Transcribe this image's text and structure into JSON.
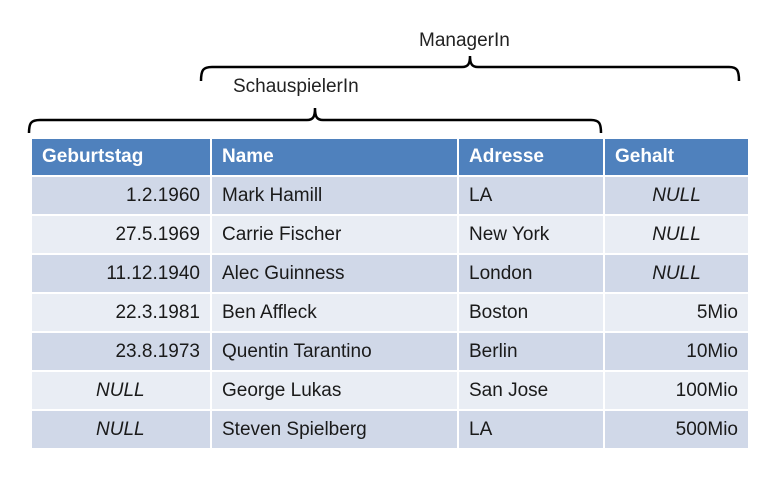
{
  "labels": {
    "manager": "ManagerIn",
    "actor": "SchauspielerIn"
  },
  "table": {
    "headers": [
      "Geburtstag",
      "Name",
      "Adresse",
      "Gehalt"
    ],
    "rows": [
      [
        "1.2.1960",
        "Mark Hamill",
        "LA",
        "NULL"
      ],
      [
        "27.5.1969",
        "Carrie Fischer",
        "New York",
        "NULL"
      ],
      [
        "11.12.1940",
        "Alec Guinness",
        "London",
        "NULL"
      ],
      [
        "22.3.1981",
        "Ben Affleck",
        "Boston",
        "5Mio"
      ],
      [
        "23.8.1973",
        "Quentin Tarantino",
        "Berlin",
        "10Mio"
      ],
      [
        "NULL",
        "George Lukas",
        "San Jose",
        "100Mio"
      ],
      [
        "NULL",
        "Steven Spielberg",
        "LA",
        "500Mio"
      ]
    ]
  },
  "colors": {
    "header_bg": "#4f81bd",
    "row_odd": "#d0d8e8",
    "row_even": "#e9edf4"
  }
}
